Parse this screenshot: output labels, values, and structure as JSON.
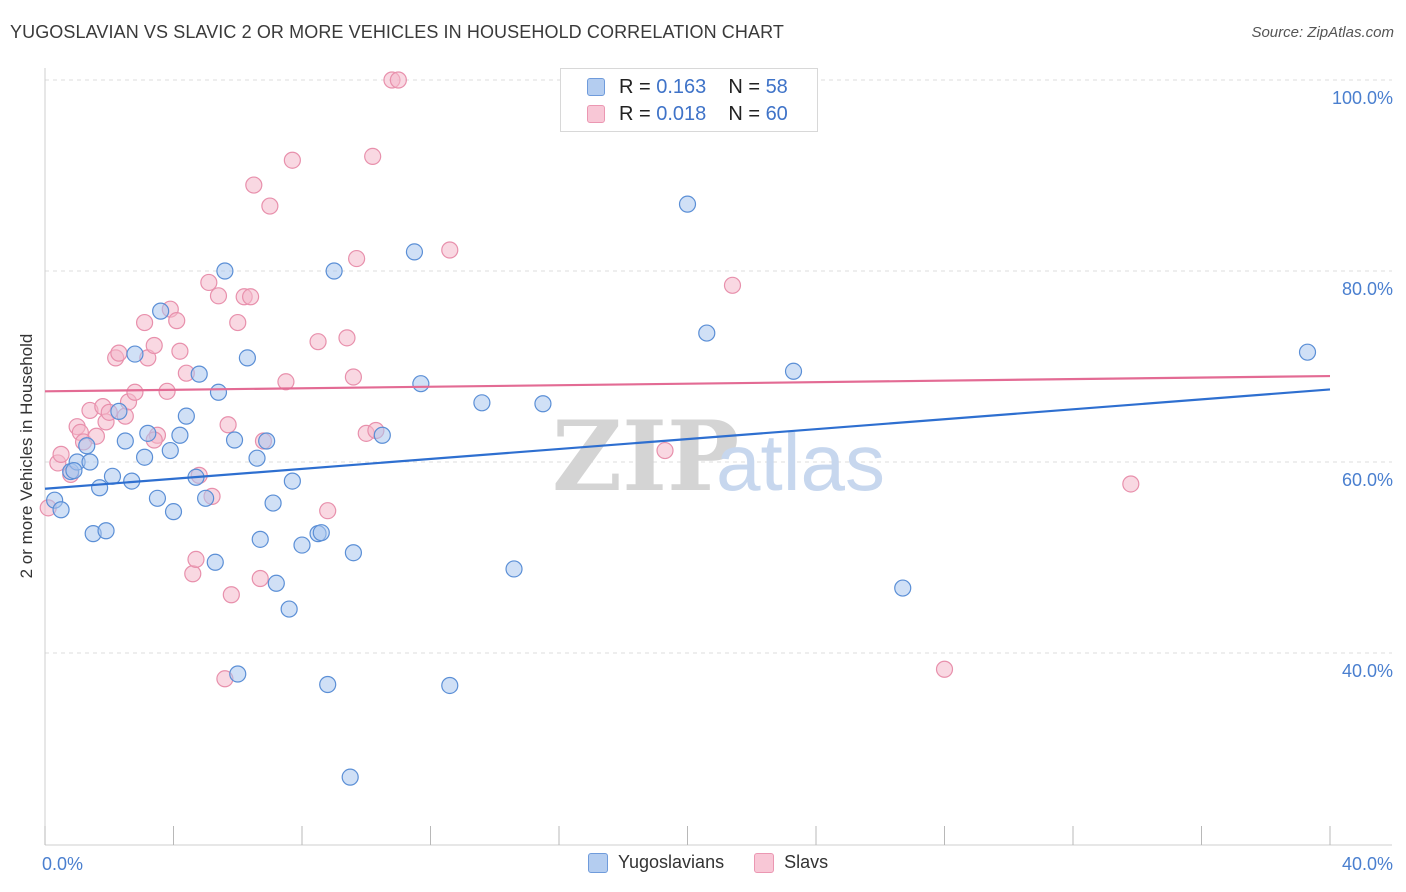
{
  "title": "YUGOSLAVIAN VS SLAVIC 2 OR MORE VEHICLES IN HOUSEHOLD CORRELATION CHART",
  "source": "Source: ZipAtlas.com",
  "watermark": {
    "zip": "ZIP",
    "atlas": "atlas"
  },
  "legend": {
    "rows": [
      {
        "r_label": "R =",
        "r_value": "0.163",
        "n_label": "N =",
        "n_value": "58"
      },
      {
        "r_label": "R =",
        "r_value": "0.018",
        "n_label": "N =",
        "n_value": "60"
      }
    ]
  },
  "bottom_legend": [
    "Yugoslavians",
    "Slavs"
  ],
  "colors": {
    "blue_fill": "#a9c6ee",
    "blue_stroke": "#5b8fd6",
    "blue_line": "#2e6fd0",
    "pink_fill": "#f4b8cb",
    "pink_stroke": "#e890ac",
    "pink_line": "#e36b94",
    "tick": "#4a7fcf"
  },
  "chart_data": {
    "type": "scatter",
    "title": "YUGOSLAVIAN VS SLAVIC 2 OR MORE VEHICLES IN HOUSEHOLD CORRELATION CHART",
    "xlabel": "",
    "ylabel": "2 or more Vehicles in Household",
    "xlim": [
      0,
      40
    ],
    "ylim": [
      20,
      100
    ],
    "x_tick_labels": [
      "0.0%",
      "40.0%"
    ],
    "y_ticks": [
      40,
      60,
      80,
      100
    ],
    "y_tick_labels": [
      "40.0%",
      "60.0%",
      "80.0%",
      "100.0%"
    ],
    "grid": true,
    "legend_position": "top-center",
    "series": [
      {
        "name": "Yugoslavians",
        "R": 0.163,
        "N": 58,
        "trend": {
          "x": [
            0,
            40
          ],
          "y": [
            57.2,
            67.6
          ]
        },
        "points": [
          [
            0.3,
            56.0
          ],
          [
            0.5,
            55.0
          ],
          [
            0.8,
            59.0
          ],
          [
            1.0,
            60.0
          ],
          [
            1.4,
            60.0
          ],
          [
            1.5,
            52.5
          ],
          [
            1.7,
            57.3
          ],
          [
            1.9,
            52.8
          ],
          [
            2.1,
            58.5
          ],
          [
            2.3,
            65.3
          ],
          [
            2.5,
            62.2
          ],
          [
            2.7,
            58.0
          ],
          [
            2.8,
            71.3
          ],
          [
            3.1,
            60.5
          ],
          [
            3.2,
            63.0
          ],
          [
            3.5,
            56.2
          ],
          [
            3.6,
            75.8
          ],
          [
            3.9,
            61.2
          ],
          [
            4.0,
            54.8
          ],
          [
            4.2,
            62.8
          ],
          [
            4.4,
            64.8
          ],
          [
            4.7,
            58.4
          ],
          [
            4.8,
            69.2
          ],
          [
            5.0,
            56.2
          ],
          [
            5.3,
            49.5
          ],
          [
            5.4,
            67.3
          ],
          [
            5.6,
            80.0
          ],
          [
            5.9,
            62.3
          ],
          [
            6.0,
            37.8
          ],
          [
            6.3,
            70.9
          ],
          [
            6.6,
            60.4
          ],
          [
            6.7,
            51.9
          ],
          [
            6.9,
            62.2
          ],
          [
            7.1,
            55.7
          ],
          [
            7.2,
            47.3
          ],
          [
            7.6,
            44.6
          ],
          [
            7.7,
            58.0
          ],
          [
            8.0,
            51.3
          ],
          [
            8.5,
            52.5
          ],
          [
            8.6,
            52.6
          ],
          [
            8.8,
            36.7
          ],
          [
            9.0,
            80.0
          ],
          [
            9.5,
            27.0
          ],
          [
            9.6,
            50.5
          ],
          [
            10.5,
            62.8
          ],
          [
            11.5,
            82.0
          ],
          [
            11.7,
            68.2
          ],
          [
            12.6,
            36.6
          ],
          [
            13.6,
            66.2
          ],
          [
            14.6,
            48.8
          ],
          [
            15.5,
            66.1
          ],
          [
            20.0,
            87.0
          ],
          [
            20.6,
            73.5
          ],
          [
            23.3,
            69.5
          ],
          [
            26.7,
            46.8
          ],
          [
            39.3,
            71.5
          ],
          [
            0.9,
            59.1
          ],
          [
            1.3,
            61.7
          ]
        ]
      },
      {
        "name": "Slavs",
        "R": 0.018,
        "N": 60,
        "trend": {
          "x": [
            0,
            40
          ],
          "y": [
            67.4,
            69.0
          ]
        },
        "points": [
          [
            0.1,
            55.2
          ],
          [
            0.4,
            59.9
          ],
          [
            0.5,
            60.8
          ],
          [
            0.8,
            58.7
          ],
          [
            1.0,
            63.7
          ],
          [
            1.1,
            63.1
          ],
          [
            1.2,
            62.1
          ],
          [
            1.4,
            65.4
          ],
          [
            1.6,
            62.7
          ],
          [
            1.8,
            65.8
          ],
          [
            1.9,
            64.2
          ],
          [
            2.0,
            65.2
          ],
          [
            2.2,
            70.9
          ],
          [
            2.3,
            71.4
          ],
          [
            2.5,
            64.8
          ],
          [
            2.6,
            66.3
          ],
          [
            2.8,
            67.3
          ],
          [
            3.1,
            74.6
          ],
          [
            3.2,
            70.9
          ],
          [
            3.4,
            72.2
          ],
          [
            3.5,
            62.8
          ],
          [
            3.8,
            67.4
          ],
          [
            3.9,
            76.0
          ],
          [
            4.1,
            74.8
          ],
          [
            4.2,
            71.6
          ],
          [
            4.4,
            69.3
          ],
          [
            4.6,
            48.3
          ],
          [
            4.7,
            49.8
          ],
          [
            4.8,
            58.6
          ],
          [
            5.1,
            78.8
          ],
          [
            5.2,
            56.4
          ],
          [
            5.4,
            77.4
          ],
          [
            5.6,
            37.3
          ],
          [
            5.7,
            63.9
          ],
          [
            5.8,
            46.1
          ],
          [
            6.0,
            74.6
          ],
          [
            6.2,
            77.3
          ],
          [
            6.4,
            77.3
          ],
          [
            6.5,
            89.0
          ],
          [
            6.7,
            47.8
          ],
          [
            6.8,
            62.2
          ],
          [
            7.0,
            86.8
          ],
          [
            7.5,
            68.4
          ],
          [
            7.7,
            91.6
          ],
          [
            8.5,
            72.6
          ],
          [
            8.8,
            54.9
          ],
          [
            9.4,
            73.0
          ],
          [
            9.6,
            68.9
          ],
          [
            9.7,
            81.3
          ],
          [
            10.0,
            63.0
          ],
          [
            10.2,
            92.0
          ],
          [
            10.3,
            63.3
          ],
          [
            10.8,
            100.0
          ],
          [
            11.0,
            100.0
          ],
          [
            12.6,
            82.2
          ],
          [
            19.3,
            61.2
          ],
          [
            21.4,
            78.5
          ],
          [
            28.0,
            38.3
          ],
          [
            33.8,
            57.7
          ],
          [
            3.4,
            62.3
          ]
        ]
      }
    ]
  }
}
